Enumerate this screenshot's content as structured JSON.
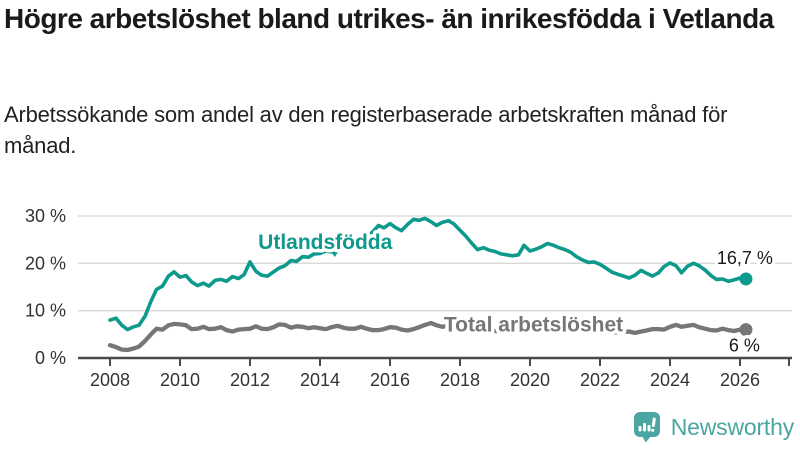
{
  "header": {
    "title": "Högre arbetslöshet bland utrikes- än inrikesfödda i Vetlanda",
    "subtitle": "Arbetssökande som andel av den registerbaserade arbetskraften månad för månad."
  },
  "footer": {
    "brand": "Newsworthy"
  },
  "colors": {
    "foreign_line": "#0D9A8D",
    "total_line": "#767676",
    "grid": "#D8D8D8",
    "axis": "#4A4A4A",
    "tick_label": "#333333",
    "end_label": "#1a1a1a",
    "logo": "#4BA6A1"
  },
  "chart_data": {
    "type": "line",
    "title": "",
    "xlabel": "",
    "ylabel": "",
    "grid": true,
    "xlim": [
      2006.9,
      2027.5
    ],
    "ylim": [
      0,
      34
    ],
    "x_ticks": [
      {
        "value": 2008,
        "label": "2008"
      },
      {
        "value": 2010,
        "label": "2010"
      },
      {
        "value": 2012,
        "label": "2012"
      },
      {
        "value": 2014,
        "label": "2014"
      },
      {
        "value": 2016,
        "label": "2016"
      },
      {
        "value": 2018,
        "label": "2018"
      },
      {
        "value": 2020,
        "label": "2020"
      },
      {
        "value": 2022,
        "label": "2022"
      },
      {
        "value": 2024,
        "label": "2024"
      },
      {
        "value": 2026,
        "label": "2026"
      }
    ],
    "y_ticks": [
      {
        "value": 0,
        "label": "0 %"
      },
      {
        "value": 10,
        "label": "10 %"
      },
      {
        "value": 20,
        "label": "20 %"
      },
      {
        "value": 30,
        "label": "30 %"
      }
    ],
    "series": [
      {
        "name": "Utlandsfödda",
        "color": "#0D9A8D",
        "end_label": "16,7 %",
        "points": [
          [
            2008.0,
            8.0
          ],
          [
            2008.17,
            8.4
          ],
          [
            2008.33,
            7.0
          ],
          [
            2008.5,
            6.0
          ],
          [
            2008.67,
            6.6
          ],
          [
            2008.83,
            6.9
          ],
          [
            2009.0,
            8.8
          ],
          [
            2009.17,
            12.0
          ],
          [
            2009.33,
            14.5
          ],
          [
            2009.5,
            15.2
          ],
          [
            2009.67,
            17.3
          ],
          [
            2009.83,
            18.2
          ],
          [
            2010.0,
            17.1
          ],
          [
            2010.17,
            17.4
          ],
          [
            2010.33,
            16.1
          ],
          [
            2010.5,
            15.3
          ],
          [
            2010.67,
            15.8
          ],
          [
            2010.83,
            15.2
          ],
          [
            2011.0,
            16.4
          ],
          [
            2011.17,
            16.6
          ],
          [
            2011.33,
            16.2
          ],
          [
            2011.5,
            17.2
          ],
          [
            2011.67,
            16.8
          ],
          [
            2011.83,
            17.6
          ],
          [
            2012.0,
            20.3
          ],
          [
            2012.17,
            18.3
          ],
          [
            2012.33,
            17.5
          ],
          [
            2012.5,
            17.3
          ],
          [
            2012.67,
            18.2
          ],
          [
            2012.83,
            19.0
          ],
          [
            2013.0,
            19.5
          ],
          [
            2013.17,
            20.6
          ],
          [
            2013.33,
            20.4
          ],
          [
            2013.5,
            21.4
          ],
          [
            2013.67,
            21.3
          ],
          [
            2013.83,
            22.0
          ],
          [
            2014.0,
            22.1
          ],
          [
            2014.17,
            22.6
          ],
          [
            2014.33,
            22.4
          ],
          [
            2014.5,
            23.1
          ],
          [
            2014.67,
            23.7
          ],
          [
            2014.83,
            24.2
          ],
          [
            2015.0,
            24.5
          ],
          [
            2015.17,
            25.2
          ],
          [
            2015.33,
            25.4
          ],
          [
            2015.5,
            26.6
          ],
          [
            2015.67,
            28.0
          ],
          [
            2015.83,
            27.5
          ],
          [
            2016.0,
            28.4
          ],
          [
            2016.17,
            27.5
          ],
          [
            2016.33,
            26.9
          ],
          [
            2016.5,
            28.2
          ],
          [
            2016.67,
            29.3
          ],
          [
            2016.83,
            29.1
          ],
          [
            2017.0,
            29.5
          ],
          [
            2017.17,
            28.8
          ],
          [
            2017.33,
            28.0
          ],
          [
            2017.5,
            28.7
          ],
          [
            2017.67,
            29.0
          ],
          [
            2017.83,
            28.3
          ],
          [
            2018.0,
            27.0
          ],
          [
            2018.17,
            25.7
          ],
          [
            2018.33,
            24.3
          ],
          [
            2018.5,
            22.9
          ],
          [
            2018.67,
            23.3
          ],
          [
            2018.83,
            22.8
          ],
          [
            2019.0,
            22.5
          ],
          [
            2019.17,
            22.0
          ],
          [
            2019.33,
            21.8
          ],
          [
            2019.5,
            21.6
          ],
          [
            2019.67,
            21.8
          ],
          [
            2019.83,
            23.8
          ],
          [
            2020.0,
            22.6
          ],
          [
            2020.17,
            23.0
          ],
          [
            2020.33,
            23.5
          ],
          [
            2020.5,
            24.2
          ],
          [
            2020.67,
            23.8
          ],
          [
            2020.83,
            23.3
          ],
          [
            2021.0,
            22.9
          ],
          [
            2021.17,
            22.3
          ],
          [
            2021.33,
            21.4
          ],
          [
            2021.5,
            20.7
          ],
          [
            2021.67,
            20.2
          ],
          [
            2021.83,
            20.3
          ],
          [
            2022.0,
            19.8
          ],
          [
            2022.17,
            19.0
          ],
          [
            2022.33,
            18.2
          ],
          [
            2022.5,
            17.7
          ],
          [
            2022.67,
            17.3
          ],
          [
            2022.83,
            16.9
          ],
          [
            2023.0,
            17.5
          ],
          [
            2023.17,
            18.5
          ],
          [
            2023.33,
            17.9
          ],
          [
            2023.5,
            17.3
          ],
          [
            2023.67,
            18.0
          ],
          [
            2023.83,
            19.3
          ],
          [
            2024.0,
            20.1
          ],
          [
            2024.17,
            19.5
          ],
          [
            2024.33,
            18.0
          ],
          [
            2024.5,
            19.4
          ],
          [
            2024.67,
            20.0
          ],
          [
            2024.83,
            19.5
          ],
          [
            2025.0,
            18.6
          ],
          [
            2025.17,
            17.4
          ],
          [
            2025.33,
            16.6
          ],
          [
            2025.5,
            16.7
          ],
          [
            2025.67,
            16.2
          ],
          [
            2025.83,
            16.5
          ],
          [
            2026.0,
            16.9
          ],
          [
            2026.17,
            16.7
          ]
        ]
      },
      {
        "name": "Total arbetslöshet",
        "color": "#767676",
        "end_label": "6 %",
        "points": [
          [
            2008.0,
            2.7
          ],
          [
            2008.17,
            2.3
          ],
          [
            2008.33,
            1.8
          ],
          [
            2008.5,
            1.7
          ],
          [
            2008.67,
            2.0
          ],
          [
            2008.83,
            2.4
          ],
          [
            2009.0,
            3.6
          ],
          [
            2009.17,
            5.0
          ],
          [
            2009.33,
            6.2
          ],
          [
            2009.5,
            6.0
          ],
          [
            2009.67,
            6.9
          ],
          [
            2009.83,
            7.2
          ],
          [
            2010.0,
            7.1
          ],
          [
            2010.17,
            6.9
          ],
          [
            2010.33,
            6.1
          ],
          [
            2010.5,
            6.2
          ],
          [
            2010.67,
            6.6
          ],
          [
            2010.83,
            6.1
          ],
          [
            2011.0,
            6.2
          ],
          [
            2011.17,
            6.5
          ],
          [
            2011.33,
            5.9
          ],
          [
            2011.5,
            5.6
          ],
          [
            2011.67,
            6.0
          ],
          [
            2011.83,
            6.1
          ],
          [
            2012.0,
            6.2
          ],
          [
            2012.17,
            6.7
          ],
          [
            2012.33,
            6.2
          ],
          [
            2012.5,
            6.1
          ],
          [
            2012.67,
            6.5
          ],
          [
            2012.83,
            7.1
          ],
          [
            2013.0,
            7.0
          ],
          [
            2013.17,
            6.4
          ],
          [
            2013.33,
            6.7
          ],
          [
            2013.5,
            6.6
          ],
          [
            2013.67,
            6.3
          ],
          [
            2013.83,
            6.5
          ],
          [
            2014.0,
            6.3
          ],
          [
            2014.17,
            6.1
          ],
          [
            2014.33,
            6.5
          ],
          [
            2014.5,
            6.8
          ],
          [
            2014.67,
            6.4
          ],
          [
            2014.83,
            6.2
          ],
          [
            2015.0,
            6.2
          ],
          [
            2015.17,
            6.6
          ],
          [
            2015.33,
            6.2
          ],
          [
            2015.5,
            5.9
          ],
          [
            2015.67,
            5.9
          ],
          [
            2015.83,
            6.1
          ],
          [
            2016.0,
            6.5
          ],
          [
            2016.17,
            6.4
          ],
          [
            2016.33,
            6.0
          ],
          [
            2016.5,
            5.8
          ],
          [
            2016.67,
            6.1
          ],
          [
            2016.83,
            6.5
          ],
          [
            2017.0,
            7.0
          ],
          [
            2017.17,
            7.4
          ],
          [
            2017.33,
            6.9
          ],
          [
            2017.5,
            6.6
          ],
          [
            2017.67,
            6.8
          ],
          [
            2017.83,
            6.4
          ],
          [
            2018.0,
            6.2
          ],
          [
            2018.17,
            6.0
          ],
          [
            2018.33,
            5.8
          ],
          [
            2018.5,
            5.8
          ],
          [
            2018.67,
            6.0
          ],
          [
            2018.83,
            5.8
          ],
          [
            2019.0,
            5.7
          ],
          [
            2019.17,
            5.6
          ],
          [
            2019.33,
            5.5
          ],
          [
            2019.5,
            5.6
          ],
          [
            2019.67,
            5.8
          ],
          [
            2019.83,
            6.0
          ],
          [
            2020.0,
            6.3
          ],
          [
            2020.17,
            6.8
          ],
          [
            2020.33,
            7.1
          ],
          [
            2020.5,
            7.2
          ],
          [
            2020.67,
            7.0
          ],
          [
            2020.83,
            6.8
          ],
          [
            2021.0,
            6.6
          ],
          [
            2021.17,
            6.4
          ],
          [
            2021.33,
            6.1
          ],
          [
            2021.5,
            5.9
          ],
          [
            2021.67,
            5.8
          ],
          [
            2021.83,
            5.7
          ],
          [
            2022.0,
            5.6
          ],
          [
            2022.17,
            5.5
          ],
          [
            2022.33,
            5.4
          ],
          [
            2022.5,
            5.4
          ],
          [
            2022.67,
            5.5
          ],
          [
            2022.83,
            5.6
          ],
          [
            2023.0,
            5.3
          ],
          [
            2023.17,
            5.6
          ],
          [
            2023.33,
            5.8
          ],
          [
            2023.5,
            6.1
          ],
          [
            2023.67,
            6.1
          ],
          [
            2023.83,
            6.0
          ],
          [
            2024.0,
            6.6
          ],
          [
            2024.17,
            7.0
          ],
          [
            2024.33,
            6.6
          ],
          [
            2024.5,
            6.8
          ],
          [
            2024.67,
            7.0
          ],
          [
            2024.83,
            6.5
          ],
          [
            2025.0,
            6.2
          ],
          [
            2025.17,
            5.9
          ],
          [
            2025.33,
            5.8
          ],
          [
            2025.5,
            6.2
          ],
          [
            2025.67,
            5.9
          ],
          [
            2025.83,
            5.7
          ],
          [
            2026.0,
            6.0
          ],
          [
            2026.17,
            6.0
          ]
        ]
      }
    ],
    "annotations": [
      {
        "text": "Utlandsfödda",
        "x": 2014.15,
        "y": 23.0,
        "series": 0,
        "marker": {
          "x": 2014.42,
          "y": 22.7
        }
      },
      {
        "text": "Total arbetslöshet",
        "x": 2020.1,
        "y": 5.6,
        "series": 1
      }
    ],
    "legend_position": "inline-labels"
  }
}
